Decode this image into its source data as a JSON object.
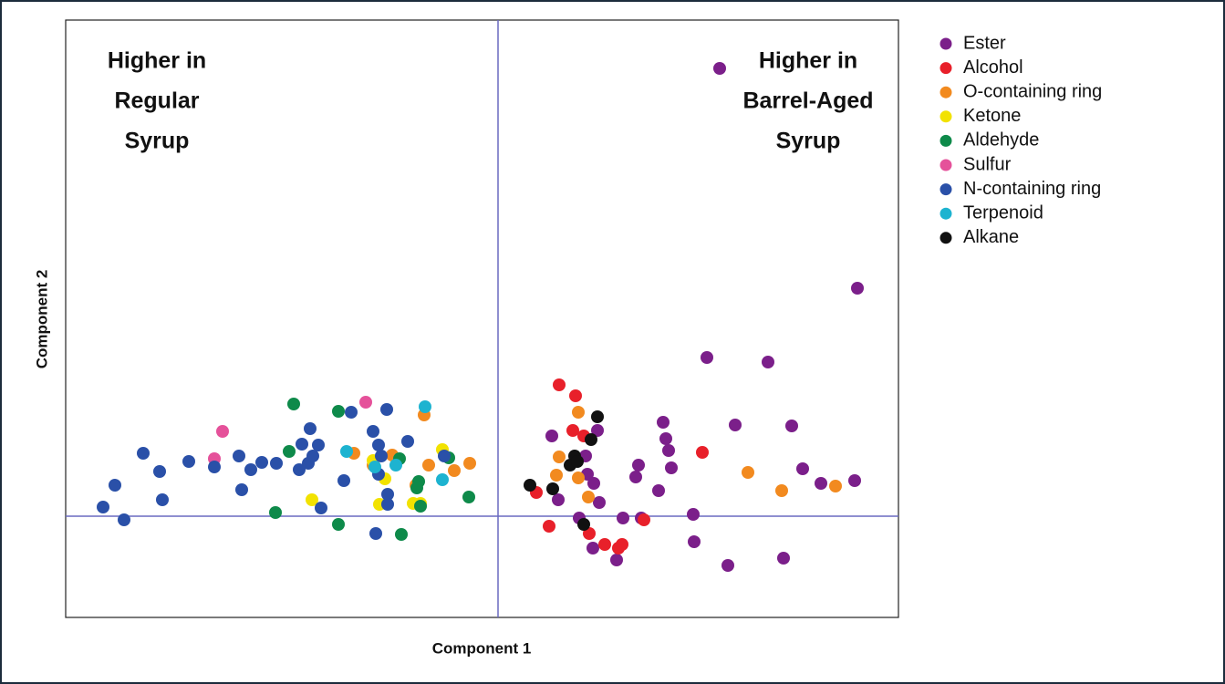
{
  "chart_data": {
    "type": "scatter",
    "x_label": "Component 1",
    "y_label": "Component 2",
    "annotations": [
      [
        "Higher in",
        "Regular",
        "Syrup"
      ],
      [
        "Higher in",
        "Barrel-Aged",
        "Syrup"
      ]
    ],
    "xlim": [
      -47.4,
      43.9
    ],
    "ylim": [
      -11.1,
      54.4
    ],
    "series": [
      {
        "name": "Ester",
        "color": "#7b1f8a",
        "x": [
          24.3,
          39.4,
          22.9,
          29.6,
          5.9,
          10.9,
          18.1,
          26,
          32.2,
          15.4,
          18.4,
          18.7,
          15.1,
          19,
          33.4,
          35.4,
          39.1,
          9.8,
          10.5,
          6.6,
          17.6,
          11.1,
          8.9,
          13.7,
          15.7,
          21.4,
          21.5,
          10.4,
          13,
          25.2,
          31.3,
          9.6
        ],
        "values": [
          49.1,
          25,
          17.4,
          16.9,
          8.8,
          9.4,
          10.3,
          10,
          9.9,
          5.6,
          8.5,
          7.2,
          4.3,
          5.3,
          5.2,
          3.6,
          3.9,
          4.6,
          3.6,
          1.8,
          2.8,
          1.5,
          -0.2,
          -0.2,
          -0.2,
          0.2,
          -2.8,
          -3.5,
          -4.8,
          -5.4,
          -4.6,
          6.6
        ]
      },
      {
        "name": "Alcohol",
        "color": "#e8202a",
        "x": [
          6.7,
          8.5,
          8.2,
          9.4,
          22.4,
          4.2,
          5.6,
          10,
          11.7,
          13.6,
          16,
          13.2
        ],
        "values": [
          14.4,
          13.2,
          9.4,
          8.8,
          7,
          2.6,
          -1.1,
          -1.9,
          -3.1,
          -3.1,
          -0.4,
          -3.5
        ]
      },
      {
        "name": "O-containing ring",
        "color": "#f28a1f",
        "x": [
          8.8,
          6.7,
          6.4,
          8.8,
          9.9,
          27.4,
          31.1,
          37,
          -8.1,
          -15.8,
          -11.6,
          -7.6,
          -4.8,
          -3.1,
          -9,
          -13.7
        ],
        "values": [
          11.4,
          6.5,
          4.5,
          4.2,
          2.1,
          4.8,
          2.8,
          3.3,
          11.1,
          6.9,
          6.7,
          5.6,
          5,
          5.8,
          3.4,
          5.6
        ]
      },
      {
        "name": "Ketone",
        "color": "#f2e200",
        "x": [
          -6.1,
          -13.7,
          -12.4,
          -20.4,
          -13,
          -9.3,
          -8.5
        ],
        "values": [
          7.3,
          6.1,
          4.1,
          1.8,
          1.3,
          1.4,
          1.4
        ]
      },
      {
        "name": "Aldehyde",
        "color": "#0e8a4a",
        "x": [
          -22.4,
          -17.5,
          -22.9,
          -10.8,
          -5.4,
          -8.7,
          -8.9,
          -8.5,
          -3.2,
          -24.4,
          -17.5,
          -10.6
        ],
        "values": [
          12.3,
          11.5,
          7.1,
          6.3,
          6.4,
          3.8,
          3.1,
          1.1,
          2.1,
          0.4,
          -0.9,
          -2
        ]
      },
      {
        "name": "Sulfur",
        "color": "#e5519a",
        "x": [
          -30.2,
          -31.1,
          -14.5
        ],
        "values": [
          9.3,
          6.3,
          12.5
        ]
      },
      {
        "name": "N-containing ring",
        "color": "#2a50a8",
        "x": [
          -43.3,
          -42,
          -41,
          -38.9,
          -37.1,
          -36.8,
          -33.9,
          -31.1,
          -28.4,
          -27.1,
          -25.9,
          -24.3,
          -28.1,
          -21.8,
          -21.5,
          -20.6,
          -20.8,
          -19.7,
          -20.3,
          -16.9,
          -16.1,
          -13.7,
          -12.2,
          -13.1,
          -13.1,
          -9.9,
          -12.1,
          -12.1,
          -19.4,
          -13.4,
          -5.9,
          -12.8
        ],
        "values": [
          1,
          3.4,
          -0.4,
          6.9,
          4.9,
          1.8,
          6,
          5.4,
          6.6,
          5.1,
          5.9,
          5.8,
          2.9,
          5.1,
          7.9,
          9.6,
          5.8,
          7.8,
          6.6,
          3.9,
          11.4,
          9.3,
          11.7,
          7.8,
          4.6,
          8.2,
          2.4,
          1.3,
          0.9,
          -1.9,
          6.6,
          6.6
        ]
      },
      {
        "name": "Terpenoid",
        "color": "#1db3d0",
        "x": [
          -8,
          -16.6,
          -13.5,
          -6.1,
          -11.2
        ],
        "values": [
          12,
          7.1,
          5.4,
          4,
          5.6
        ]
      },
      {
        "name": "Alkane",
        "color": "#111111",
        "x": [
          10.9,
          10.2,
          8.4,
          7.9,
          8.7,
          3.5,
          6,
          9.4
        ],
        "values": [
          10.9,
          8.4,
          6.6,
          5.6,
          6,
          3.4,
          3,
          -0.9
        ]
      }
    ]
  }
}
